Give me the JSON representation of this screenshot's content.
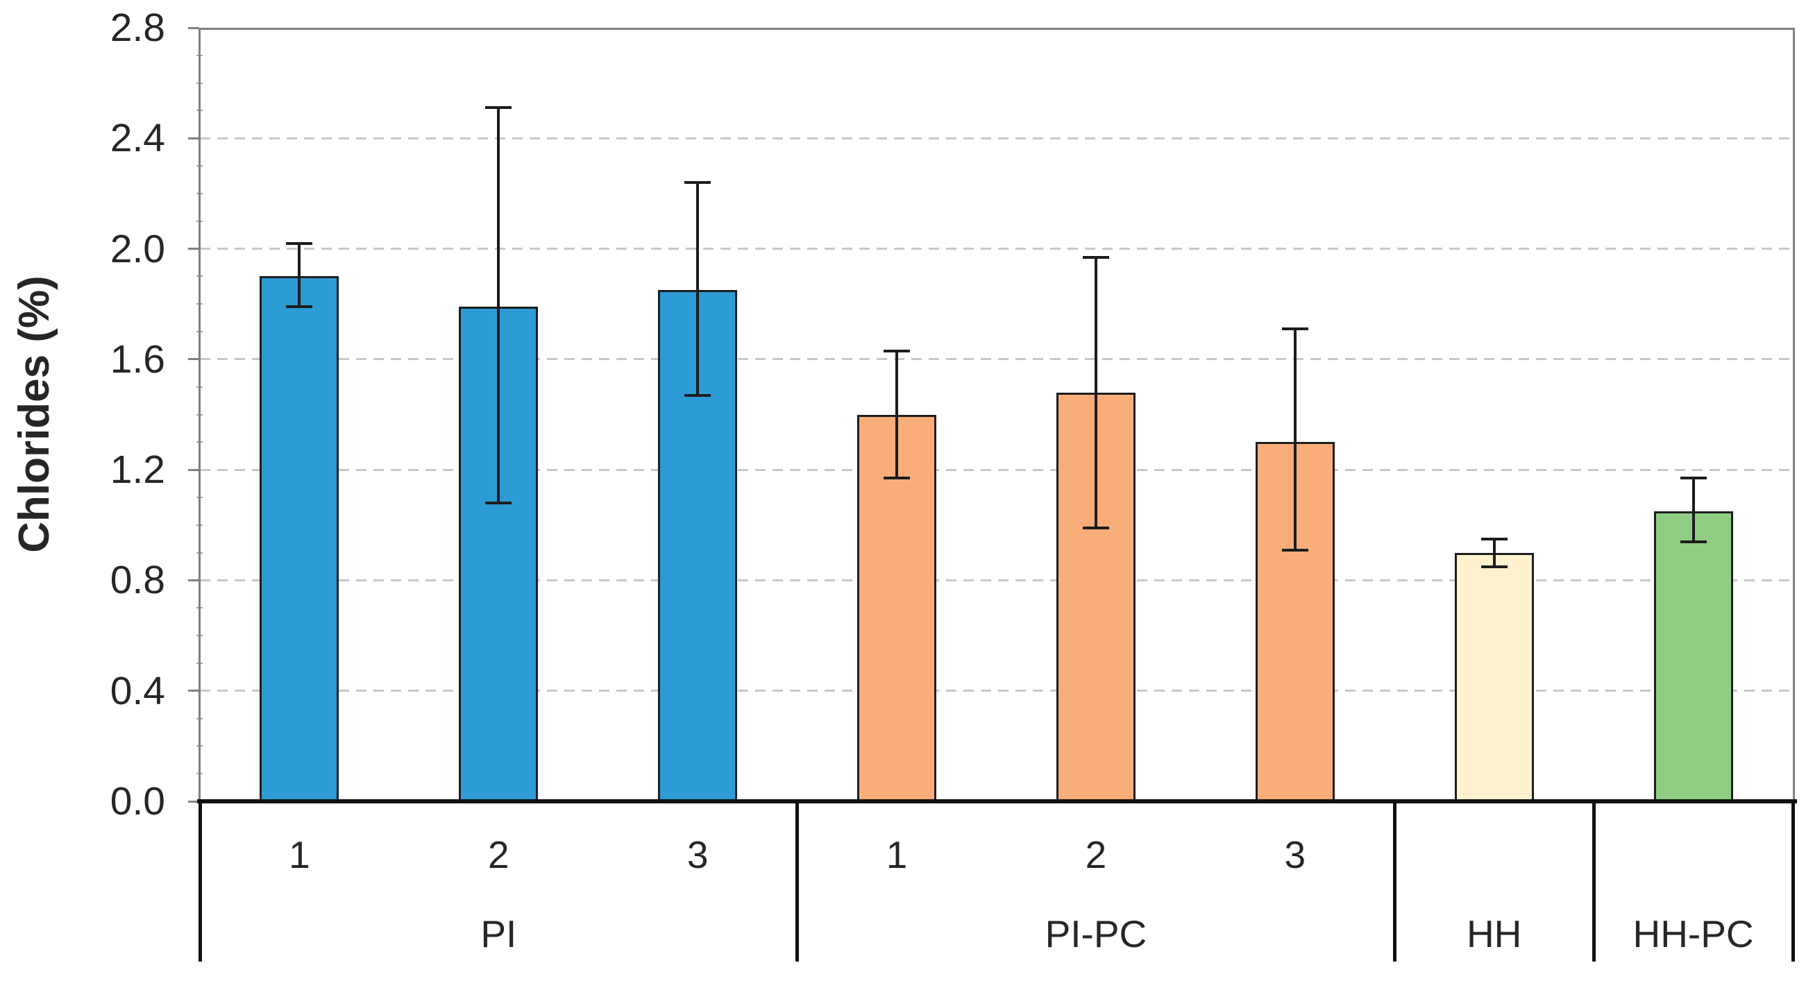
{
  "figure": {
    "background": "#FFFFFF"
  },
  "chart_data": {
    "type": "bar",
    "title": "",
    "ylabel": "Chlorides (%)",
    "xlabel": "",
    "ylim": [
      0.0,
      2.8
    ],
    "ytick_step_major": 0.4,
    "ytick_step_minor": 0.1,
    "ytick_labels": [
      "0.0",
      "0.4",
      "0.8",
      "1.2",
      "1.6",
      "2.0",
      "2.4",
      "2.8"
    ],
    "grid": {
      "horizontal": true,
      "style": "dashed",
      "at": [
        0.4,
        0.8,
        1.2,
        1.6,
        2.0,
        2.4
      ]
    },
    "legend": "none",
    "error_bars": true,
    "groups": [
      {
        "label": "PI",
        "bar_color": "#2D9BD5",
        "bars": [
          {
            "sublabel": "1",
            "value": 1.9,
            "err_low": 1.79,
            "err_high": 2.02
          },
          {
            "sublabel": "2",
            "value": 1.79,
            "err_low": 1.08,
            "err_high": 2.51
          },
          {
            "sublabel": "3",
            "value": 1.85,
            "err_low": 1.47,
            "err_high": 2.24
          }
        ]
      },
      {
        "label": "PI-PC",
        "bar_color": "#F9AE79",
        "bars": [
          {
            "sublabel": "1",
            "value": 1.4,
            "err_low": 1.17,
            "err_high": 1.63
          },
          {
            "sublabel": "2",
            "value": 1.48,
            "err_low": 0.99,
            "err_high": 1.97
          },
          {
            "sublabel": "3",
            "value": 1.3,
            "err_low": 0.91,
            "err_high": 1.71
          }
        ]
      },
      {
        "label": "HH",
        "bar_color": "#FDF2CD",
        "bars": [
          {
            "sublabel": "",
            "value": 0.9,
            "err_low": 0.85,
            "err_high": 0.95
          }
        ]
      },
      {
        "label": "HH-PC",
        "bar_color": "#8FCD84",
        "bars": [
          {
            "sublabel": "",
            "value": 1.05,
            "err_low": 0.94,
            "err_high": 1.17
          }
        ]
      }
    ],
    "colors": {
      "bar_border": "#1E1E1E",
      "error_bar": "#1C1C1C",
      "gridline": "#C7C7C7",
      "plot_frame": "#7F7F7F",
      "axis_baseline": "#111111",
      "category_divider": "#111111",
      "tick_major": "#7F7F7F",
      "tick_minor": "#A3A3A3",
      "text": "#262626"
    }
  }
}
